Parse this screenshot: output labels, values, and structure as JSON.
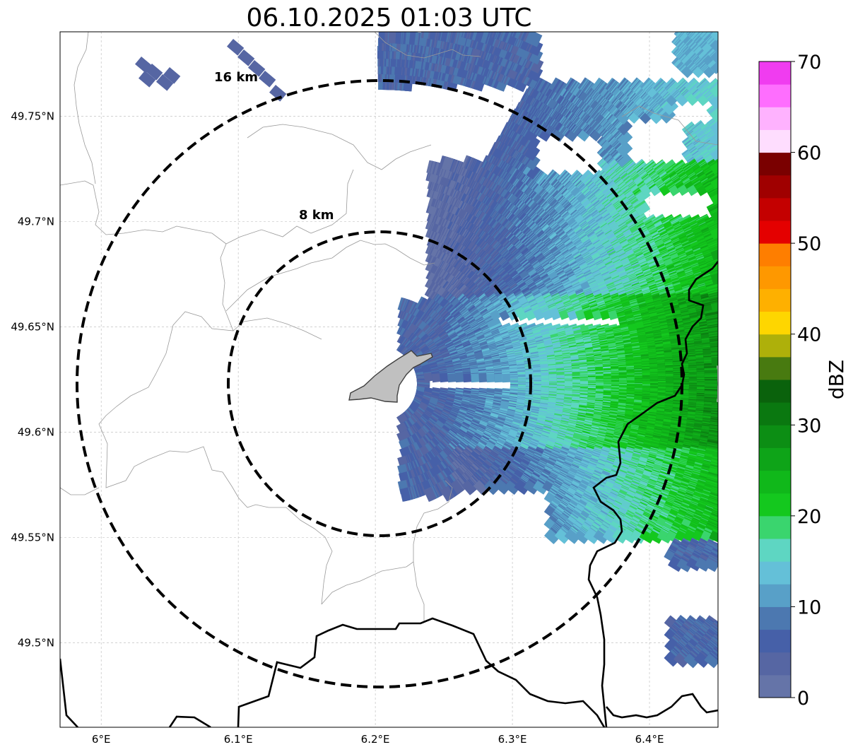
{
  "title": "06.10.2025 01:03 UTC",
  "chart_data": {
    "type": "radar reflectivity map",
    "timestamp": "06.10.2025 01:03 UTC",
    "x_axis": {
      "label": "",
      "range_deg_e": [
        5.97,
        6.45
      ],
      "ticks": [
        6.0,
        6.1,
        6.2,
        6.3,
        6.4
      ],
      "tick_labels": [
        "6°E",
        "6.1°E",
        "6.2°E",
        "6.3°E",
        "6.4°E"
      ]
    },
    "y_axis": {
      "label": "",
      "range_deg_n": [
        49.46,
        49.79
      ],
      "ticks": [
        49.5,
        49.55,
        49.6,
        49.65,
        49.7,
        49.75
      ],
      "tick_labels": [
        "49.5°N",
        "49.55°N",
        "49.6°N",
        "49.65°N",
        "49.7°N",
        "49.75°N"
      ]
    },
    "grid": true,
    "range_rings": [
      {
        "label": "8 km",
        "radius_km": 8,
        "center": [
          6.2,
          49.623
        ]
      },
      {
        "label": "16 km",
        "radius_km": 16,
        "center": [
          6.2,
          49.623
        ]
      }
    ],
    "colorbar": {
      "label": "dBZ",
      "min": 0,
      "max": 70,
      "step": 2.5,
      "tick_values": [
        0,
        10,
        20,
        30,
        40,
        50,
        60,
        70
      ],
      "tick_labels": [
        "0",
        "10",
        "20",
        "30",
        "40",
        "50",
        "60",
        "70"
      ],
      "colors": [
        "#6574a8",
        "#5666a3",
        "#4660a8",
        "#4c78b0",
        "#58a0c8",
        "#64c0d8",
        "#5ed6c2",
        "#3ad56e",
        "#14c81e",
        "#10b81a",
        "#0ea418",
        "#0c8e14",
        "#0a7810",
        "#0a620c",
        "#487a10",
        "#aeb00a",
        "#fed600",
        "#feb000",
        "#fe9800",
        "#fe7e00",
        "#e40000",
        "#c40000",
        "#a00000",
        "#7a0000",
        "#feddfe",
        "#feb2fe",
        "#fe6efe",
        "#f03cf0"
      ]
    },
    "echo_summary": "Precipitation echoes (0–28 dBZ) cover the eastern half of the domain, strongest (20–28 dBZ) near 6.38–6.45°E, 49.58–49.66°N; small weak echoes in the northwest corner and near 6.43°E, 49.50°N."
  }
}
